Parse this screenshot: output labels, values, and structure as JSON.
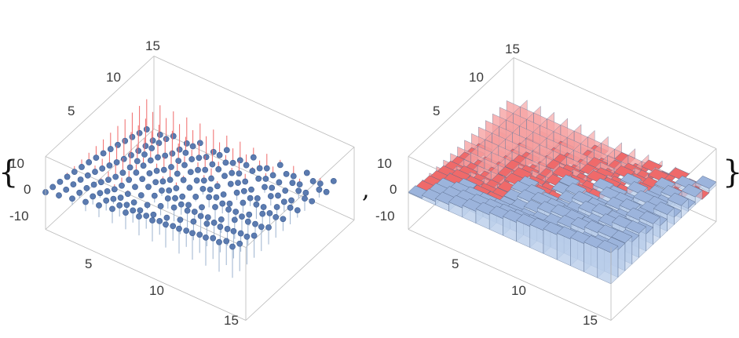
{
  "list_punctuation": {
    "open": "{",
    "separator": ",",
    "close": "}"
  },
  "colors": {
    "point": "#5b7bb0",
    "point_stroke": "#3f5f94",
    "stem_up": "#9cb3cf",
    "stem_down": "#f06a6a",
    "bar_top": "#9cb4dc",
    "bar_side": "#b9cdea",
    "bar_neg_top": "#ef6a6a",
    "bar_neg_side": "#f6a2a2",
    "box": "#b9b9b9"
  },
  "chart_data": [
    {
      "type": "scatter3d",
      "style": "discrete-plot-3d with stems to z=0",
      "x_ticks": [
        "5",
        "10",
        "15"
      ],
      "y_ticks": [
        "5",
        "10",
        "15"
      ],
      "z_ticks": [
        "10",
        "0",
        "-10"
      ],
      "x_range": [
        1,
        16
      ],
      "y_range": [
        1,
        16
      ],
      "z_range": [
        -15,
        15
      ],
      "z_formula": "(i - j) * 0.9 + 1.5 * sin(i * j / 5)",
      "grid": false
    },
    {
      "type": "bar3d",
      "style": "discrete-plot-3d with filled bars; positive values blue, negative values red",
      "x_ticks": [
        "5",
        "10",
        "15"
      ],
      "y_ticks": [
        "5",
        "10",
        "15"
      ],
      "z_ticks": [
        "10",
        "0",
        "-10"
      ],
      "x_range": [
        1,
        16
      ],
      "y_range": [
        1,
        16
      ],
      "z_range": [
        -15,
        15
      ],
      "z_formula": "(i - j) * 0.9 + 1.5 * sin(i * j / 5)",
      "grid": false
    }
  ]
}
